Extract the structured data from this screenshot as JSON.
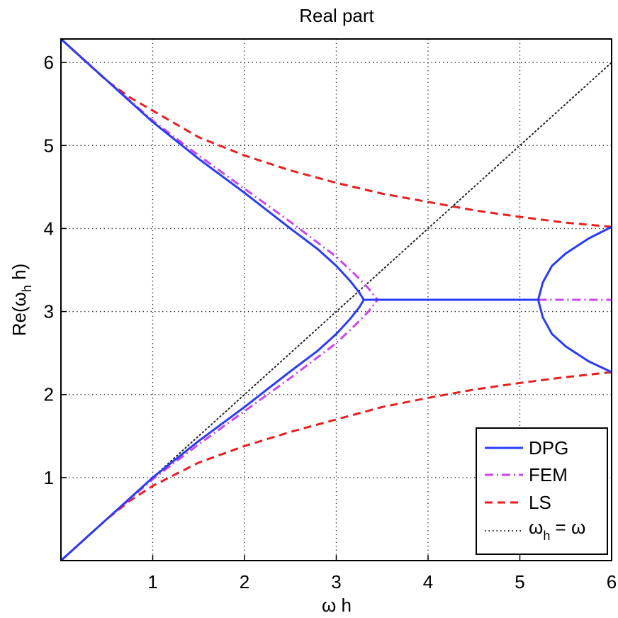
{
  "chart_data": {
    "type": "line",
    "title": "Real part",
    "xlabel": "ω h",
    "ylabel": "Re(ω",
    "ylabel_sub": "h",
    "ylabel_tail": " h)",
    "xlim": [
      0,
      6
    ],
    "ylim": [
      0,
      6.2832
    ],
    "xticks": [
      1,
      2,
      3,
      4,
      5,
      6
    ],
    "xtick_labels": [
      "1",
      "2",
      "3",
      "4",
      "5",
      "6"
    ],
    "yticks": [
      1,
      2,
      3,
      4,
      5,
      6
    ],
    "ytick_labels": [
      "1",
      "2",
      "3",
      "4",
      "5",
      "6"
    ],
    "grid": true,
    "legend_position": "bottom-right",
    "series": [
      {
        "name": "DPG",
        "color": "#2a3cf5",
        "dash": "solid",
        "segments": [
          {
            "x": [
              0,
              0.5,
              1.0,
              1.5,
              2.0,
              2.5,
              2.8,
              3.0,
              3.15,
              3.25,
              3.3
            ],
            "y": [
              0,
              0.5,
              1.0,
              1.44,
              1.85,
              2.28,
              2.53,
              2.73,
              2.91,
              3.05,
              3.1416
            ]
          },
          {
            "x": [
              0,
              0.5,
              1.0,
              1.5,
              2.0,
              2.5,
              2.8,
              3.0,
              3.15,
              3.25,
              3.3
            ],
            "y": [
              6.2832,
              5.7832,
              5.2832,
              4.84,
              4.43,
              4.0,
              3.75,
              3.55,
              3.37,
              3.23,
              3.1416
            ]
          },
          {
            "x": [
              3.3,
              5.2
            ],
            "y": [
              3.1416,
              3.1416
            ]
          },
          {
            "x": [
              5.2,
              5.25,
              5.35,
              5.5,
              5.75,
              6.0
            ],
            "y": [
              3.1416,
              3.35,
              3.55,
              3.7,
              3.88,
              4.02
            ]
          },
          {
            "x": [
              5.2,
              5.25,
              5.35,
              5.5,
              5.75,
              6.0
            ],
            "y": [
              3.1416,
              2.93,
              2.73,
              2.58,
              2.4,
              2.27
            ]
          }
        ]
      },
      {
        "name": "FEM",
        "color": "#cc44ee",
        "dash": "dashdot",
        "segments": [
          {
            "x": [
              0,
              0.5,
              1.0,
              1.5,
              2.0,
              2.5,
              3.0,
              3.2,
              3.35,
              3.45
            ],
            "y": [
              0,
              0.5,
              0.98,
              1.4,
              1.8,
              2.2,
              2.62,
              2.83,
              3.0,
              3.1416
            ]
          },
          {
            "x": [
              0,
              0.5,
              1.0,
              1.5,
              2.0,
              2.5,
              3.0,
              3.2,
              3.35,
              3.45
            ],
            "y": [
              6.2832,
              5.7832,
              5.3,
              4.88,
              4.48,
              4.08,
              3.66,
              3.45,
              3.28,
              3.1416
            ]
          },
          {
            "x": [
              5.2,
              6.0
            ],
            "y": [
              3.1416,
              3.1416
            ]
          }
        ]
      },
      {
        "name": "LS",
        "color": "#e81e1e",
        "dash": "dashed",
        "segments": [
          {
            "x": [
              0,
              0.25,
              0.5,
              0.75,
              1.0,
              1.5,
              2.0,
              2.5,
              3.0,
              3.5,
              4.0,
              4.5,
              5.0,
              5.5,
              6.0
            ],
            "y": [
              0,
              0.25,
              0.5,
              0.72,
              0.9,
              1.18,
              1.38,
              1.55,
              1.7,
              1.85,
              1.96,
              2.06,
              2.14,
              2.21,
              2.27
            ]
          },
          {
            "x": [
              0,
              0.25,
              0.5,
              0.75,
              1.0,
              1.5,
              2.0,
              2.5,
              3.0,
              3.5,
              4.0,
              4.5,
              5.0,
              5.5,
              6.0
            ],
            "y": [
              6.2832,
              6.03,
              5.78,
              5.58,
              5.42,
              5.1,
              4.88,
              4.7,
              4.55,
              4.42,
              4.32,
              4.22,
              4.14,
              4.07,
              4.02
            ]
          }
        ]
      },
      {
        "name": "ω_h = ω",
        "label_main": "ω",
        "label_sub": "h",
        "label_tail": " = ω",
        "color": "#222222",
        "dash": "dotted",
        "segments": [
          {
            "x": [
              0,
              6
            ],
            "y": [
              0,
              6
            ]
          }
        ]
      }
    ]
  }
}
